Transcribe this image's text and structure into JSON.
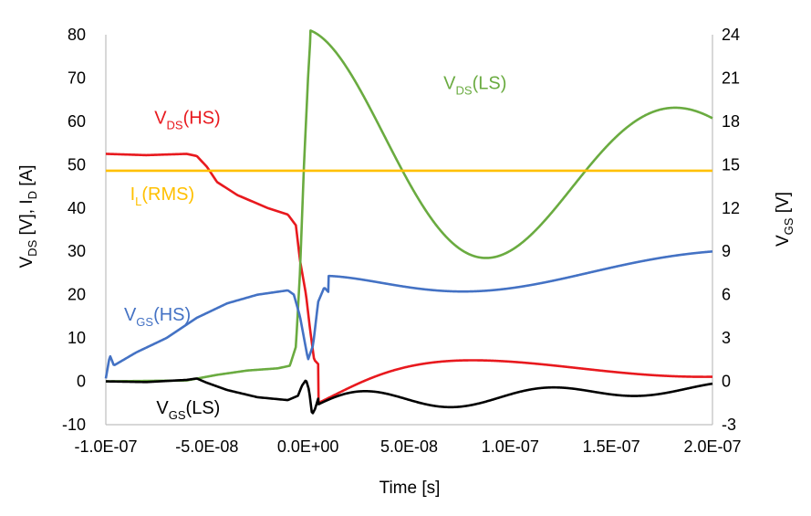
{
  "chart_data": {
    "type": "line",
    "xlabel": "Time [s]",
    "ylabel_left": {
      "base": "V",
      "sub1": "DS",
      "mid": " [V], I",
      "sub2": "D",
      "tail": " [A]"
    },
    "ylabel_right": {
      "base": "V",
      "sub": "GS",
      "tail": " [V]"
    },
    "xlim": [
      -1e-07,
      2e-07
    ],
    "ylim_left": [
      -10,
      80
    ],
    "ylim_right": [
      -3,
      24
    ],
    "x_ticks": [
      -1e-07,
      -5e-08,
      0,
      5e-08,
      1e-07,
      1.5e-07,
      2e-07
    ],
    "x_tick_labels": [
      "-1.0E-07",
      "-5.0E-08",
      "0.0E+00",
      "5.0E-08",
      "1.0E-07",
      "1.5E-07",
      "2.0E-07"
    ],
    "y_left_ticks": [
      -10,
      0,
      10,
      20,
      30,
      40,
      50,
      60,
      70,
      80
    ],
    "y_right_ticks": [
      -3,
      0,
      3,
      6,
      9,
      12,
      15,
      18,
      21,
      24
    ],
    "grid": false,
    "series": [
      {
        "name": "VDS(HS)",
        "label": {
          "base": "V",
          "sub": "DS",
          "tail": "(HS)"
        },
        "label_at": [
          -7.6e-08,
          59.5
        ],
        "color": "#e8191e",
        "axis": "left",
        "base": [
          [
            -1e-07,
            52.5
          ],
          [
            -8e-08,
            52.2
          ],
          [
            -6e-08,
            52.5
          ],
          [
            -5.5e-08,
            52.0
          ],
          [
            -5e-08,
            49.5
          ],
          [
            -4.5e-08,
            46.0
          ],
          [
            -3.5e-08,
            43.0
          ],
          [
            -2e-08,
            40.0
          ],
          [
            -1e-08,
            38.5
          ],
          [
            -6e-09,
            36.0
          ],
          [
            -4e-09,
            28.0
          ],
          [
            -1e-09,
            20.0
          ],
          [
            1e-09,
            12.0
          ],
          [
            3e-09,
            5.0
          ],
          [
            5e-09,
            4.0
          ]
        ],
        "osc": {
          "t0": 5e-09,
          "t_end": 2e-07,
          "freq": 5450000.0,
          "start": 4.0,
          "end": 2.0,
          "amp0": 9.0,
          "tau": 3.5e-08,
          "amp_floor": 1.0,
          "phase": -1.5708
        }
      },
      {
        "name": "VDS(LS)",
        "label": {
          "base": "V",
          "sub": "DS",
          "tail": "(LS)"
        },
        "label_at": [
          6.7e-08,
          67.5
        ],
        "color": "#6aab40",
        "axis": "left",
        "base": [
          [
            -1e-07,
            0.0
          ],
          [
            -6e-08,
            0.2
          ],
          [
            -4.5e-08,
            1.5
          ],
          [
            -3e-08,
            2.5
          ],
          [
            -1.5e-08,
            3.0
          ],
          [
            -9e-09,
            3.6
          ],
          [
            -6e-09,
            8.0
          ],
          [
            -4e-09,
            25.0
          ],
          [
            -2e-09,
            50.0
          ],
          [
            0.0,
            70.0
          ],
          [
            1e-09,
            78.0
          ]
        ],
        "osc": {
          "t0": 1e-09,
          "t_end": 2e-07,
          "freq": 5450000.0,
          "start": 48.0,
          "end": 50.0,
          "amp0": 33.0,
          "tau": 1.5e-07,
          "amp_floor": 5.0,
          "phase": 1.5708
        }
      },
      {
        "name": "VGS(HS)",
        "label": {
          "base": "V",
          "sub": "GS",
          "tail": "(HS)"
        },
        "label_at": [
          -9.1e-08,
          14.0
        ],
        "color": "#4472c4",
        "axis": "right",
        "base": [
          [
            -1e-07,
            0.2
          ],
          [
            -9.8e-08,
            1.8
          ],
          [
            -9.6e-08,
            1.1
          ],
          [
            -8.5e-08,
            2.0
          ],
          [
            -7e-08,
            3.0
          ],
          [
            -5.5e-08,
            4.4
          ],
          [
            -4e-08,
            5.4
          ],
          [
            -2.5e-08,
            6.0
          ],
          [
            -1e-08,
            6.3
          ],
          [
            -7e-09,
            6.0
          ],
          [
            -4e-09,
            4.5
          ],
          [
            -2e-09,
            3.0
          ],
          [
            0.0,
            1.5
          ],
          [
            2.5e-09,
            2.5
          ],
          [
            5e-09,
            5.5
          ],
          [
            8e-09,
            6.5
          ],
          [
            1e-08,
            6.2
          ]
        ],
        "osc": {
          "t0": 1e-08,
          "t_end": 2e-07,
          "freq": 5450000.0,
          "start": 5.7,
          "end": 8.6,
          "amp0": 1.6,
          "tau": 6e-08,
          "amp_floor": 0.35,
          "phase": 1.5708
        }
      },
      {
        "name": "VGS(LS)",
        "label": {
          "base": "V",
          "sub": "GS",
          "tail": "(LS)"
        },
        "label_at": [
          -7.5e-08,
          -7.5
        ],
        "color": "#000000",
        "axis": "right",
        "base": [
          [
            -1e-07,
            0.0
          ],
          [
            -8e-08,
            -0.05
          ],
          [
            -6e-08,
            0.1
          ],
          [
            -5.5e-08,
            0.2
          ],
          [
            -5e-08,
            -0.1
          ],
          [
            -4e-08,
            -0.6
          ],
          [
            -2.5e-08,
            -1.1
          ],
          [
            -1e-08,
            -1.3
          ],
          [
            -5e-09,
            -1.0
          ],
          [
            -3e-09,
            -0.3
          ],
          [
            -1e-09,
            0.1
          ],
          [
            5e-10,
            -0.6
          ],
          [
            2e-09,
            -2.3
          ],
          [
            3.5e-09,
            -1.9
          ],
          [
            5e-09,
            -1.2
          ]
        ],
        "osc": {
          "t0": 5e-09,
          "t_end": 2e-07,
          "freq": 10900000.0,
          "start": -1.6,
          "end": -0.4,
          "amp0": 0.9,
          "tau": 1.2e-07,
          "amp_floor": 0.2,
          "phase": 0.0
        }
      },
      {
        "name": "IL(RMS)",
        "label": {
          "base": "I",
          "sub": "L",
          "tail": "(RMS)"
        },
        "label_at": [
          -8.8e-08,
          41.8
        ],
        "color": "#ffc000",
        "axis": "left",
        "base": [
          [
            -1e-07,
            48.6
          ],
          [
            2e-07,
            48.6
          ]
        ]
      }
    ]
  }
}
